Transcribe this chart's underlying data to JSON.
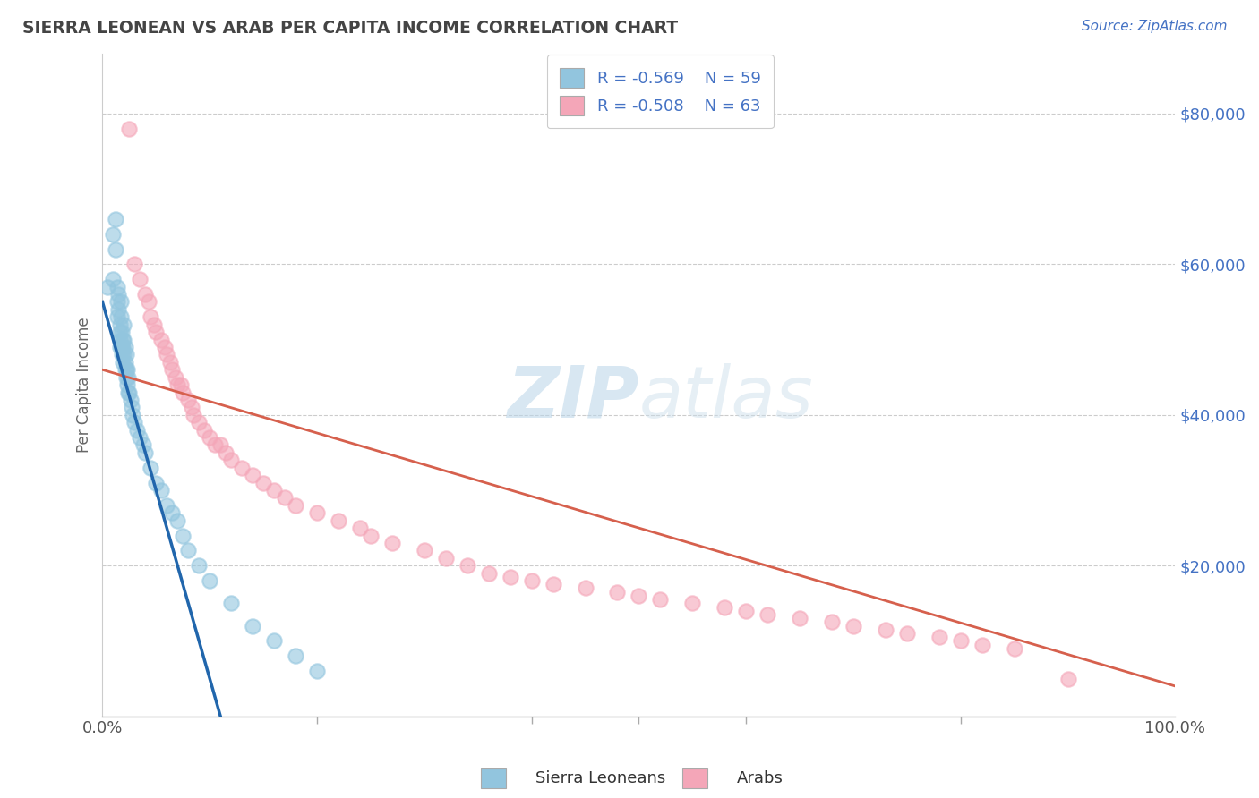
{
  "title": "SIERRA LEONEAN VS ARAB PER CAPITA INCOME CORRELATION CHART",
  "source": "Source: ZipAtlas.com",
  "ylabel": "Per Capita Income",
  "xlim": [
    0.0,
    1.0
  ],
  "ylim": [
    0,
    88000
  ],
  "yticks": [
    20000,
    40000,
    60000,
    80000
  ],
  "ytick_labels": [
    "$20,000",
    "$40,000",
    "$60,000",
    "$80,000"
  ],
  "xtick_labels": [
    "0.0%",
    "100.0%"
  ],
  "legend_blue_r": "-0.569",
  "legend_blue_n": "59",
  "legend_pink_r": "-0.508",
  "legend_pink_n": "63",
  "label_blue": "Sierra Leoneans",
  "label_pink": "Arabs",
  "blue_color": "#92c5de",
  "blue_line_color": "#2166ac",
  "pink_color": "#f4a6b8",
  "pink_line_color": "#d6604d",
  "watermark_zip": "ZIP",
  "watermark_atlas": "atlas",
  "background_color": "#ffffff",
  "grid_color": "#cccccc",
  "title_color": "#444444",
  "axis_label_color": "#666666",
  "tick_color_right": "#4472c4",
  "legend_text_color": "#4472c4",
  "blue_scatter_x": [
    0.005,
    0.01,
    0.01,
    0.012,
    0.012,
    0.014,
    0.014,
    0.014,
    0.015,
    0.015,
    0.016,
    0.016,
    0.016,
    0.016,
    0.017,
    0.017,
    0.018,
    0.018,
    0.018,
    0.019,
    0.019,
    0.019,
    0.02,
    0.02,
    0.02,
    0.021,
    0.021,
    0.021,
    0.022,
    0.022,
    0.022,
    0.023,
    0.023,
    0.024,
    0.024,
    0.025,
    0.026,
    0.027,
    0.028,
    0.03,
    0.032,
    0.035,
    0.038,
    0.04,
    0.045,
    0.05,
    0.055,
    0.06,
    0.065,
    0.07,
    0.075,
    0.08,
    0.09,
    0.1,
    0.12,
    0.14,
    0.16,
    0.18,
    0.2
  ],
  "blue_scatter_y": [
    57000,
    64000,
    58000,
    66000,
    62000,
    57000,
    55000,
    53000,
    56000,
    54000,
    52000,
    51000,
    50000,
    49000,
    55000,
    53000,
    51000,
    49000,
    48000,
    50000,
    49000,
    47000,
    52000,
    50000,
    48000,
    49000,
    47000,
    46000,
    48000,
    46000,
    45000,
    46000,
    44000,
    45000,
    43000,
    43000,
    42000,
    41000,
    40000,
    39000,
    38000,
    37000,
    36000,
    35000,
    33000,
    31000,
    30000,
    28000,
    27000,
    26000,
    24000,
    22000,
    20000,
    18000,
    15000,
    12000,
    10000,
    8000,
    6000
  ],
  "pink_scatter_x": [
    0.025,
    0.03,
    0.035,
    0.04,
    0.043,
    0.045,
    0.048,
    0.05,
    0.055,
    0.058,
    0.06,
    0.063,
    0.065,
    0.068,
    0.07,
    0.073,
    0.075,
    0.08,
    0.083,
    0.085,
    0.09,
    0.095,
    0.1,
    0.105,
    0.11,
    0.115,
    0.12,
    0.13,
    0.14,
    0.15,
    0.16,
    0.17,
    0.18,
    0.2,
    0.22,
    0.24,
    0.25,
    0.27,
    0.3,
    0.32,
    0.34,
    0.36,
    0.38,
    0.4,
    0.42,
    0.45,
    0.48,
    0.5,
    0.52,
    0.55,
    0.58,
    0.6,
    0.62,
    0.65,
    0.68,
    0.7,
    0.73,
    0.75,
    0.78,
    0.8,
    0.82,
    0.85,
    0.9
  ],
  "pink_scatter_y": [
    78000,
    60000,
    58000,
    56000,
    55000,
    53000,
    52000,
    51000,
    50000,
    49000,
    48000,
    47000,
    46000,
    45000,
    44000,
    44000,
    43000,
    42000,
    41000,
    40000,
    39000,
    38000,
    37000,
    36000,
    36000,
    35000,
    34000,
    33000,
    32000,
    31000,
    30000,
    29000,
    28000,
    27000,
    26000,
    25000,
    24000,
    23000,
    22000,
    21000,
    20000,
    19000,
    18500,
    18000,
    17500,
    17000,
    16500,
    16000,
    15500,
    15000,
    14500,
    14000,
    13500,
    13000,
    12500,
    12000,
    11500,
    11000,
    10500,
    10000,
    9500,
    9000,
    5000
  ]
}
